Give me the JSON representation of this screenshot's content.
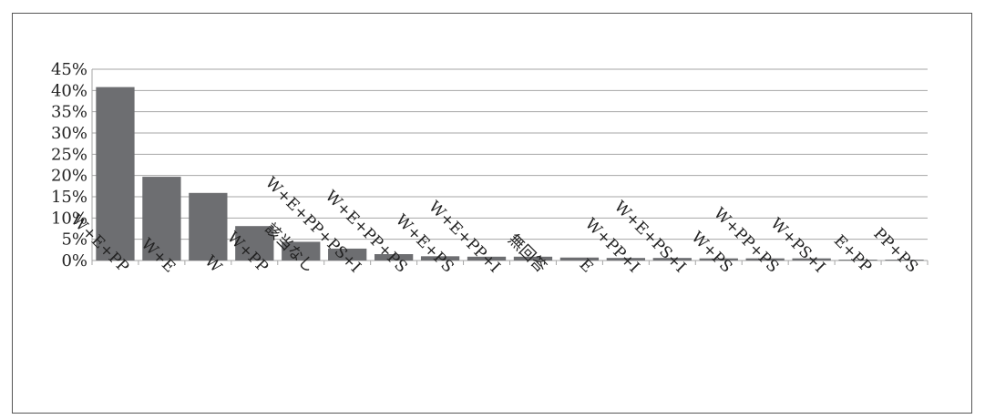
{
  "chart_data": {
    "type": "bar",
    "title": "",
    "xlabel": "",
    "ylabel": "",
    "categories": [
      "W+E+PP",
      "W+E",
      "W",
      "W+PP",
      "該当なし",
      "W+E+PP+PS+I",
      "W+E+PP+PS",
      "W+E+PS",
      "W+E+PP+I",
      "無回答",
      "E",
      "W+PP+I",
      "W+E+PS+I",
      "W+PS",
      "W+PP+PS",
      "W+PS+I",
      "E+PP",
      "PP+PS"
    ],
    "values": [
      40.8,
      19.7,
      15.9,
      8.1,
      4.4,
      2.8,
      1.5,
      1.0,
      0.9,
      0.9,
      0.7,
      0.6,
      0.6,
      0.5,
      0.5,
      0.5,
      0.2,
      0.2
    ],
    "ylim": [
      0,
      45
    ],
    "yticks": [
      "0%",
      "5%",
      "10%",
      "15%",
      "20%",
      "25%",
      "30%",
      "35%",
      "40%",
      "45%"
    ],
    "grid": true,
    "legend": "none",
    "bar_color": "#6d6e71"
  }
}
